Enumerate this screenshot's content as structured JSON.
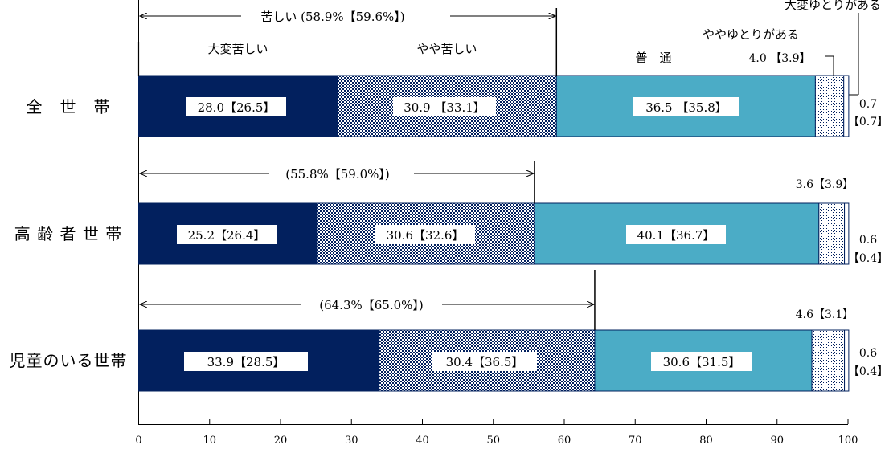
{
  "chart_data": {
    "type": "bar",
    "orientation": "horizontal",
    "stacked": true,
    "xlim": [
      0,
      100
    ],
    "x_ticks": [
      0,
      10,
      20,
      30,
      40,
      50,
      60,
      70,
      80,
      90,
      100
    ],
    "categories": [
      "全　世　帯",
      "高 齢 者 世 帯",
      "児童のいる世帯"
    ],
    "series": [
      {
        "name": "大変苦しい",
        "values": [
          28.0,
          25.2,
          33.9
        ],
        "prev": [
          26.5,
          26.4,
          28.5
        ],
        "color": "#02205e",
        "pattern": "solid"
      },
      {
        "name": "やや苦しい",
        "values": [
          30.9,
          30.6,
          30.4
        ],
        "prev": [
          33.1,
          32.6,
          36.5
        ],
        "color": "#02205e",
        "pattern": "checker"
      },
      {
        "name": "普　通",
        "values": [
          36.5,
          40.1,
          30.6
        ],
        "prev": [
          35.8,
          36.7,
          31.5
        ],
        "color": "#4bacc6",
        "pattern": "solid"
      },
      {
        "name": "ややゆとりがある",
        "values": [
          4.0,
          3.6,
          4.6
        ],
        "prev": [
          3.9,
          3.9,
          3.1
        ],
        "color": "#ffffff",
        "pattern": "dots"
      },
      {
        "name": "大変ゆとりがある",
        "values": [
          0.7,
          0.6,
          0.6
        ],
        "prev": [
          0.7,
          0.4,
          0.4
        ],
        "color": "#ffffff",
        "pattern": "solid"
      }
    ],
    "segment_labels": [
      [
        "28.0【26.5】",
        "30.9 【33.1】",
        "36.5 【35.8】"
      ],
      [
        "25.2【26.4】",
        "30.6【32.6】",
        "40.1【36.7】"
      ],
      [
        "33.9【28.5】",
        "30.4【36.5】",
        "30.6【31.5】"
      ]
    ],
    "yayu_labels": [
      "4.0 【3.9】",
      "3.6【3.9】",
      "4.6【3.1】"
    ],
    "taihen_labels": [
      [
        "0.7",
        "【0.7】"
      ],
      [
        "0.6",
        "【0.4】"
      ],
      [
        "0.6",
        "【0.4】"
      ]
    ],
    "bracket_labels": [
      "苦しい (58.9%【59.6%】)",
      "(55.8%【59.0%】)",
      "(64.3%【65.0%】)"
    ],
    "bracket_values": [
      58.9,
      55.8,
      64.3
    ],
    "legend_labels": [
      "大変苦しい",
      "やや苦しい",
      "普　通",
      "ややゆとりがある",
      "大変ゆとりがある"
    ]
  }
}
